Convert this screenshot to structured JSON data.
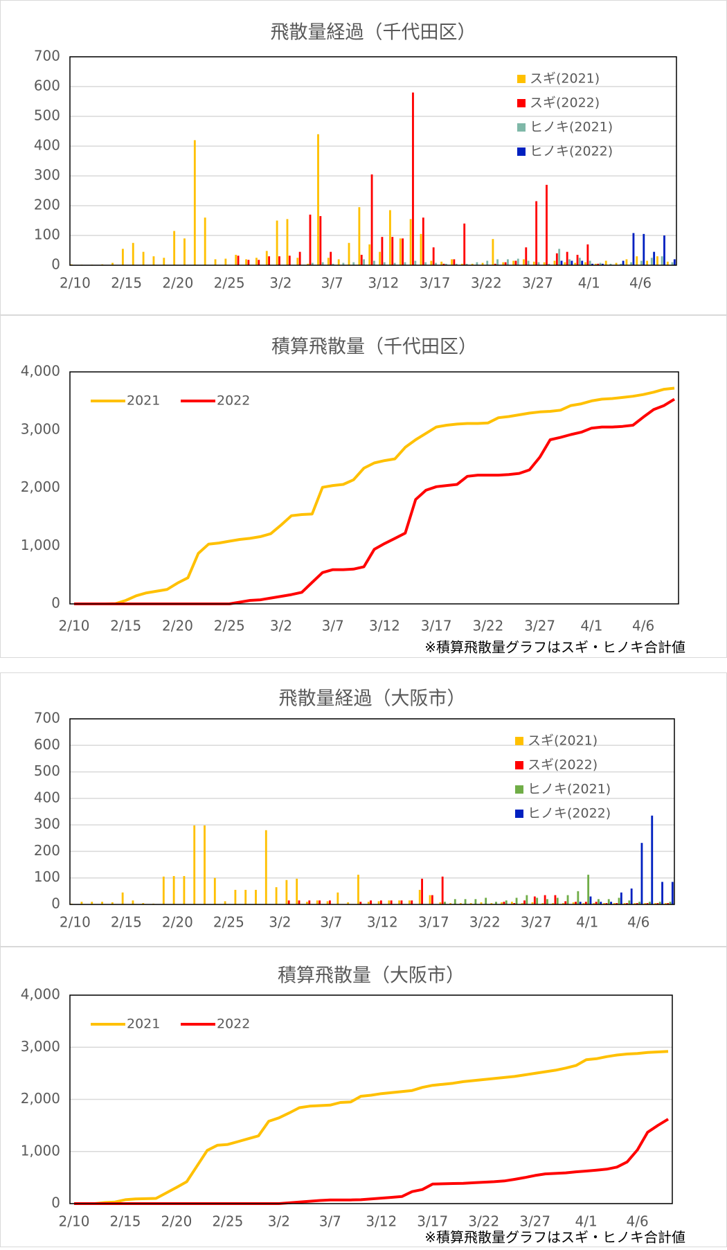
{
  "chart_data": [
    {
      "type": "bar",
      "title": "飛散量経過（千代田区）",
      "categories": [
        "2/10",
        null,
        null,
        null,
        null,
        "2/15",
        null,
        null,
        null,
        null,
        "2/20",
        null,
        null,
        null,
        null,
        "2/25",
        null,
        null,
        null,
        null,
        "3/2",
        null,
        null,
        null,
        null,
        "3/7",
        null,
        null,
        null,
        null,
        "3/12",
        null,
        null,
        null,
        null,
        "3/17",
        null,
        null,
        null,
        null,
        "3/22",
        null,
        null,
        null,
        null,
        "3/27",
        null,
        null,
        null,
        null,
        "4/1",
        null,
        null,
        null,
        null,
        "4/6",
        null,
        null,
        null
      ],
      "series": [
        {
          "name": "スギ(2021)",
          "color": "#ffc000",
          "values": [
            3,
            2,
            2,
            3,
            8,
            55,
            75,
            45,
            30,
            25,
            115,
            90,
            420,
            160,
            20,
            22,
            35,
            20,
            25,
            48,
            150,
            155,
            25,
            5,
            440,
            25,
            20,
            75,
            195,
            70,
            45,
            185,
            90,
            155,
            105,
            15,
            12,
            20,
            5,
            5,
            8,
            88,
            10,
            15,
            20,
            12,
            10,
            15,
            10,
            8,
            10,
            5,
            15,
            8,
            20,
            30,
            15,
            30,
            12
          ]
        },
        {
          "name": "スギ(2022)",
          "color": "#ff0000",
          "values": [
            0,
            0,
            0,
            0,
            0,
            0,
            0,
            0,
            0,
            0,
            0,
            0,
            0,
            0,
            0,
            0,
            32,
            18,
            18,
            30,
            30,
            32,
            45,
            170,
            165,
            45,
            0,
            0,
            35,
            305,
            95,
            95,
            90,
            580,
            160,
            60,
            5,
            20,
            140,
            0,
            0,
            5,
            10,
            15,
            60,
            215,
            270,
            40,
            45,
            35,
            70,
            5,
            0,
            0,
            0,
            0,
            0,
            0,
            0
          ]
        },
        {
          "name": "ヒノキ(2021)",
          "color": "#7fb8a8",
          "values": [
            0,
            0,
            0,
            0,
            0,
            0,
            0,
            0,
            0,
            0,
            0,
            0,
            0,
            0,
            0,
            0,
            0,
            0,
            0,
            0,
            0,
            0,
            0,
            8,
            10,
            5,
            8,
            10,
            20,
            15,
            10,
            8,
            10,
            15,
            10,
            8,
            5,
            5,
            5,
            10,
            15,
            20,
            20,
            22,
            15,
            10,
            5,
            55,
            20,
            25,
            15,
            8,
            5,
            5,
            10,
            15,
            25,
            30,
            10
          ]
        },
        {
          "name": "ヒノキ(2022)",
          "color": "#0020c0",
          "values": [
            0,
            0,
            0,
            0,
            0,
            0,
            0,
            0,
            0,
            0,
            0,
            0,
            0,
            0,
            0,
            0,
            0,
            0,
            0,
            0,
            0,
            0,
            0,
            0,
            0,
            0,
            0,
            0,
            0,
            0,
            0,
            0,
            0,
            0,
            0,
            0,
            0,
            0,
            0,
            0,
            0,
            0,
            0,
            0,
            0,
            0,
            0,
            15,
            15,
            15,
            5,
            5,
            0,
            15,
            108,
            105,
            45,
            100,
            20
          ]
        }
      ],
      "ylim": [
        0,
        700
      ],
      "yticks": [
        0,
        100,
        200,
        300,
        400,
        500,
        600,
        700
      ],
      "grid": true,
      "legend": "upper right"
    },
    {
      "type": "line",
      "title": "積算飛散量（千代田区）",
      "categories": [
        "2/10",
        null,
        null,
        null,
        null,
        "2/15",
        null,
        null,
        null,
        null,
        "2/20",
        null,
        null,
        null,
        null,
        "2/25",
        null,
        null,
        null,
        null,
        "3/2",
        null,
        null,
        null,
        null,
        "3/7",
        null,
        null,
        null,
        null,
        "3/12",
        null,
        null,
        null,
        null,
        "3/17",
        null,
        null,
        null,
        null,
        "3/22",
        null,
        null,
        null,
        null,
        "3/27",
        null,
        null,
        null,
        null,
        "4/1",
        null,
        null,
        null,
        null,
        "4/6",
        null,
        null,
        null
      ],
      "series": [
        {
          "name": "2021",
          "color": "#ffc000",
          "values": [
            0,
            0,
            0,
            0,
            5,
            60,
            140,
            190,
            220,
            250,
            360,
            450,
            870,
            1030,
            1050,
            1080,
            1110,
            1130,
            1160,
            1210,
            1360,
            1520,
            1540,
            1550,
            2010,
            2040,
            2060,
            2140,
            2340,
            2430,
            2470,
            2500,
            2700,
            2830,
            2940,
            3050,
            3080,
            3100,
            3110,
            3110,
            3120,
            3210,
            3230,
            3260,
            3290,
            3310,
            3320,
            3340,
            3420,
            3450,
            3500,
            3530,
            3540,
            3560,
            3580,
            3610,
            3650,
            3700,
            3720
          ]
        },
        {
          "name": "2022",
          "color": "#ff0000",
          "values": [
            0,
            0,
            0,
            0,
            0,
            0,
            0,
            0,
            0,
            0,
            0,
            0,
            0,
            0,
            0,
            0,
            30,
            60,
            70,
            100,
            130,
            160,
            200,
            370,
            540,
            590,
            590,
            600,
            640,
            940,
            1040,
            1130,
            1220,
            1800,
            1960,
            2020,
            2040,
            2060,
            2200,
            2220,
            2220,
            2220,
            2230,
            2250,
            2310,
            2530,
            2830,
            2870,
            2920,
            2960,
            3030,
            3050,
            3050,
            3060,
            3080,
            3220,
            3350,
            3420,
            3530
          ]
        }
      ],
      "ylim": [
        0,
        4000
      ],
      "yticks": [
        0,
        {
          "value": 1000,
          "label": "1,000"
        },
        {
          "value": 2000,
          "label": "2,000"
        },
        {
          "value": 3000,
          "label": "3,000"
        },
        {
          "value": 4000,
          "label": "4,000"
        }
      ],
      "grid": false,
      "legend": "upper left",
      "note": "※積算飛散量グラフはスギ・ヒノキ合計値"
    },
    {
      "type": "bar",
      "title": "飛散量経過（大阪市）",
      "categories": [
        "2/10",
        null,
        null,
        null,
        null,
        "2/15",
        null,
        null,
        null,
        null,
        "2/20",
        null,
        null,
        null,
        null,
        "2/25",
        null,
        null,
        null,
        null,
        "3/2",
        null,
        null,
        null,
        null,
        "3/7",
        null,
        null,
        null,
        null,
        "3/12",
        null,
        null,
        null,
        null,
        "3/17",
        null,
        null,
        null,
        null,
        "3/22",
        null,
        null,
        null,
        null,
        "3/27",
        null,
        null,
        null,
        null,
        "4/1",
        null,
        null,
        null,
        null,
        "4/6",
        null,
        null,
        null
      ],
      "series": [
        {
          "name": "スギ(2021)",
          "color": "#ffc000",
          "values": [
            3,
            10,
            10,
            10,
            8,
            45,
            15,
            5,
            3,
            105,
            107,
            107,
            298,
            298,
            100,
            12,
            55,
            55,
            55,
            280,
            65,
            92,
            97,
            10,
            15,
            12,
            45,
            8,
            112,
            10,
            12,
            15,
            15,
            15,
            55,
            35,
            8,
            5,
            5,
            5,
            8,
            5,
            8,
            10,
            5,
            8,
            5,
            5,
            5,
            8,
            5,
            5,
            5,
            5,
            5,
            5,
            5,
            5,
            5
          ]
        },
        {
          "name": "スギ(2022)",
          "color": "#ff0000",
          "values": [
            0,
            0,
            0,
            0,
            0,
            0,
            0,
            0,
            0,
            0,
            0,
            0,
            0,
            0,
            0,
            0,
            0,
            0,
            0,
            0,
            0,
            15,
            15,
            15,
            15,
            15,
            0,
            0,
            10,
            15,
            15,
            15,
            15,
            15,
            97,
            35,
            105,
            0,
            0,
            0,
            0,
            0,
            10,
            5,
            15,
            30,
            35,
            35,
            12,
            10,
            10,
            10,
            5,
            5,
            5,
            5,
            5,
            5,
            5
          ]
        },
        {
          "name": "ヒノキ(2021)",
          "color": "#70ad47",
          "values": [
            0,
            0,
            0,
            0,
            0,
            0,
            0,
            0,
            0,
            0,
            0,
            0,
            0,
            0,
            0,
            0,
            0,
            0,
            0,
            0,
            0,
            0,
            0,
            0,
            0,
            0,
            0,
            0,
            0,
            0,
            0,
            0,
            0,
            0,
            0,
            0,
            10,
            20,
            20,
            20,
            25,
            10,
            15,
            25,
            35,
            25,
            20,
            25,
            35,
            50,
            112,
            20,
            20,
            25,
            15,
            10,
            10,
            10,
            10
          ]
        },
        {
          "name": "ヒノキ(2022)",
          "color": "#0020c0",
          "values": [
            0,
            0,
            0,
            0,
            0,
            0,
            0,
            0,
            0,
            0,
            0,
            0,
            0,
            0,
            0,
            0,
            0,
            0,
            0,
            0,
            0,
            0,
            0,
            0,
            0,
            0,
            0,
            0,
            0,
            0,
            0,
            0,
            0,
            0,
            0,
            0,
            0,
            0,
            0,
            0,
            0,
            0,
            0,
            0,
            0,
            0,
            0,
            0,
            0,
            10,
            30,
            10,
            10,
            45,
            60,
            232,
            335,
            85,
            85
          ]
        }
      ],
      "ylim": [
        0,
        700
      ],
      "yticks": [
        0,
        100,
        200,
        300,
        400,
        500,
        600,
        700
      ],
      "grid": true,
      "legend": "upper right"
    },
    {
      "type": "line",
      "title": "積算飛散量（大阪市）",
      "categories": [
        "2/10",
        null,
        null,
        null,
        null,
        "2/15",
        null,
        null,
        null,
        null,
        "2/20",
        null,
        null,
        null,
        null,
        "2/25",
        null,
        null,
        null,
        null,
        "3/2",
        null,
        null,
        null,
        null,
        "3/7",
        null,
        null,
        null,
        null,
        "3/12",
        null,
        null,
        null,
        null,
        "3/17",
        null,
        null,
        null,
        null,
        "3/22",
        null,
        null,
        null,
        null,
        "3/27",
        null,
        null,
        null,
        null,
        "4/1",
        null,
        null,
        null,
        null,
        "4/6",
        null,
        null,
        null
      ],
      "series": [
        {
          "name": "2021",
          "color": "#ffc000",
          "values": [
            0,
            0,
            0,
            20,
            30,
            75,
            90,
            95,
            100,
            205,
            310,
            420,
            720,
            1020,
            1120,
            1135,
            1190,
            1245,
            1300,
            1580,
            1645,
            1740,
            1840,
            1870,
            1880,
            1890,
            1940,
            1950,
            2060,
            2080,
            2110,
            2130,
            2150,
            2170,
            2230,
            2270,
            2290,
            2310,
            2340,
            2360,
            2380,
            2400,
            2420,
            2440,
            2470,
            2500,
            2530,
            2560,
            2600,
            2650,
            2760,
            2780,
            2820,
            2850,
            2870,
            2880,
            2900,
            2910,
            2920
          ]
        },
        {
          "name": "2022",
          "color": "#ff0000",
          "values": [
            0,
            0,
            0,
            0,
            0,
            0,
            0,
            0,
            0,
            0,
            0,
            0,
            0,
            0,
            0,
            0,
            0,
            0,
            0,
            0,
            0,
            15,
            30,
            45,
            60,
            70,
            70,
            70,
            75,
            90,
            105,
            120,
            135,
            230,
            270,
            375,
            380,
            385,
            390,
            400,
            410,
            420,
            435,
            465,
            500,
            540,
            570,
            580,
            590,
            610,
            625,
            640,
            660,
            700,
            800,
            1030,
            1370,
            1500,
            1620
          ]
        }
      ],
      "ylim": [
        0,
        4000
      ],
      "yticks": [
        0,
        {
          "value": 1000,
          "label": "1,000"
        },
        {
          "value": 2000,
          "label": "2,000"
        },
        {
          "value": 3000,
          "label": "3,000"
        },
        {
          "value": 4000,
          "label": "4,000"
        }
      ],
      "grid": true,
      "legend": "upper left",
      "note": "※積算飛散量グラフはスギ・ヒノキ合計値"
    }
  ]
}
